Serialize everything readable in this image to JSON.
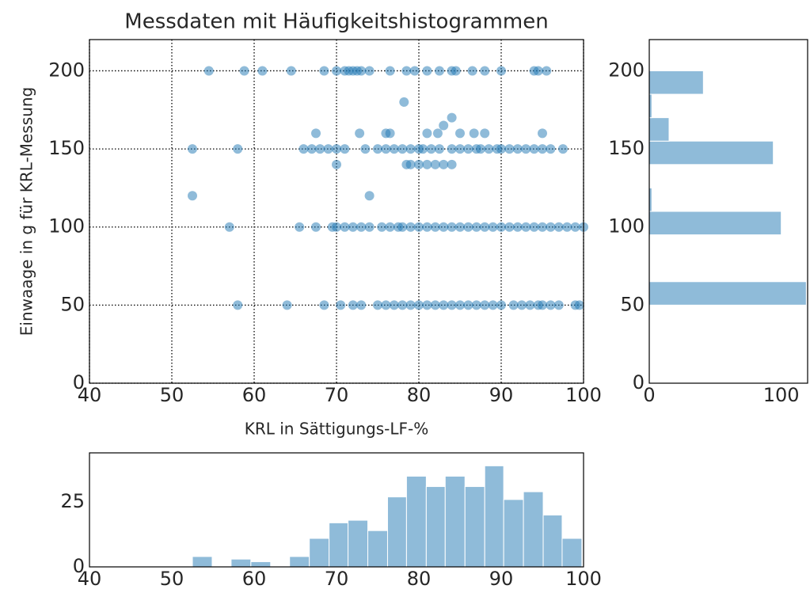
{
  "chart_data": [
    {
      "type": "scatter",
      "title": "Messdaten mit Häufigkeitshistogrammen",
      "xlabel": "KRL in Sättigungs-LF-%",
      "ylabel": "Einwaage in g für KRL-Messung",
      "color": "#1f77b4",
      "opacity": 0.5,
      "grid": true,
      "xlim": [
        40,
        100
      ],
      "xticks": [
        40,
        50,
        60,
        70,
        80,
        90,
        100
      ],
      "ylim": [
        0,
        220
      ],
      "yticks": [
        0,
        50,
        100,
        150,
        200
      ],
      "x": [
        54.5,
        58.8,
        61,
        64.5,
        68.5,
        70,
        71,
        71.5,
        72,
        72.5,
        73,
        74,
        76.5,
        78.5,
        79.5,
        81,
        82.5,
        84,
        84.5,
        86.5,
        88,
        90,
        94,
        94.5,
        95.5,
        78.2,
        83,
        84,
        81,
        85,
        67.5,
        72.8,
        76,
        76.5,
        86.7,
        95,
        82.3,
        88,
        80,
        81,
        82,
        83,
        84,
        78.5,
        79,
        70,
        52.5,
        74,
        52.5,
        58,
        66,
        67,
        68,
        69,
        70,
        71,
        73.5,
        75,
        76,
        77,
        78,
        79,
        80,
        80.5,
        81.5,
        82.5,
        84,
        85,
        86,
        87,
        87.5,
        88.5,
        89.5,
        90,
        91,
        92,
        93,
        94,
        95,
        96,
        97.5,
        57,
        65.5,
        67.5,
        69.5,
        70,
        71,
        72,
        73,
        74,
        75.5,
        76.5,
        77.5,
        78,
        79,
        80,
        81,
        82,
        83,
        84,
        85,
        86,
        87,
        88,
        89,
        90,
        91,
        92,
        93,
        94,
        95,
        96,
        97,
        98,
        99,
        100,
        58,
        64,
        68.5,
        70.5,
        72,
        73,
        75,
        76,
        77,
        78,
        79,
        80,
        81,
        82,
        83,
        84,
        85,
        86,
        87,
        88,
        89,
        90,
        91.5,
        92.5,
        93.5,
        94.5,
        95,
        96,
        97,
        99,
        99.5
      ],
      "y": [
        200,
        200,
        200,
        200,
        200,
        200,
        200,
        200,
        200,
        200,
        200,
        200,
        200,
        200,
        200,
        200,
        200,
        200,
        200,
        200,
        200,
        200,
        200,
        200,
        200,
        180,
        165,
        170,
        160,
        160,
        160,
        160,
        160,
        160,
        160,
        160,
        160,
        160,
        140,
        140,
        140,
        140,
        140,
        140,
        140,
        140,
        120,
        120,
        150,
        150,
        150,
        150,
        150,
        150,
        150,
        150,
        150,
        150,
        150,
        150,
        150,
        150,
        150,
        150,
        150,
        150,
        150,
        150,
        150,
        150,
        150,
        150,
        150,
        150,
        150,
        150,
        150,
        150,
        150,
        150,
        150,
        100,
        100,
        100,
        100,
        100,
        100,
        100,
        100,
        100,
        100,
        100,
        100,
        100,
        100,
        100,
        100,
        100,
        100,
        100,
        100,
        100,
        100,
        100,
        100,
        100,
        100,
        100,
        100,
        100,
        100,
        100,
        100,
        100,
        100,
        100,
        50,
        50,
        50,
        50,
        50,
        50,
        50,
        50,
        50,
        50,
        50,
        50,
        50,
        50,
        50,
        50,
        50,
        50,
        50,
        50,
        50,
        50,
        50,
        50,
        50,
        50,
        50,
        50,
        50,
        50,
        50
      ]
    },
    {
      "type": "histogram",
      "orientation": "horizontal",
      "color": "#1f77b4",
      "opacity": 0.5,
      "bins": [
        50,
        65,
        80,
        95,
        110,
        125,
        140,
        155,
        170,
        185,
        200
      ],
      "values": [
        119,
        0,
        0,
        100,
        2,
        0,
        94,
        15,
        2,
        41
      ],
      "xlim": [
        0,
        120
      ],
      "xticks": [
        0,
        100
      ],
      "ylim": [
        0,
        220
      ],
      "yticks": [
        0,
        50,
        100,
        150,
        200
      ]
    },
    {
      "type": "histogram",
      "orientation": "vertical",
      "color": "#1f77b4",
      "opacity": 0.5,
      "bins": [
        52.5,
        54.9,
        57.2,
        59.6,
        62.0,
        64.3,
        66.7,
        69.1,
        71.4,
        73.8,
        76.2,
        78.5,
        80.9,
        83.2,
        85.6,
        88.0,
        90.3,
        92.7,
        95.1,
        97.4,
        99.8
      ],
      "values": [
        4,
        0,
        3,
        2,
        0,
        4,
        11,
        17,
        18,
        14,
        27,
        35,
        31,
        35,
        31,
        39,
        26,
        29,
        20,
        11
      ],
      "xlim": [
        40,
        100
      ],
      "xticks": [
        40,
        50,
        60,
        70,
        80,
        90,
        100
      ],
      "ylim": [
        0,
        44
      ],
      "yticks": [
        0,
        25
      ]
    }
  ]
}
